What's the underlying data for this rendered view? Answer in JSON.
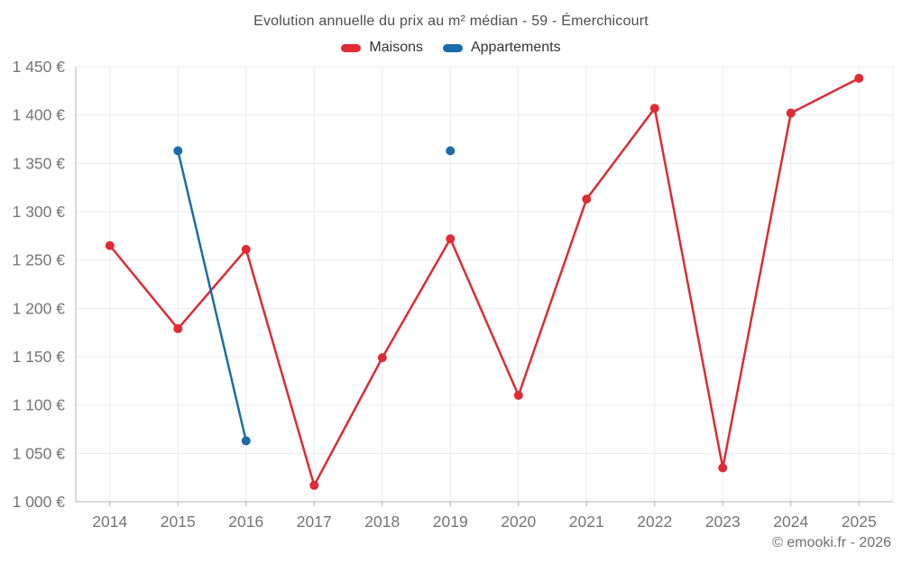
{
  "title": "Evolution annuelle du prix au m² médian - 59 - Émerchicourt",
  "footer": {
    "text": "© emooki.fr - 2026"
  },
  "colors": {
    "grid": "#ebebeb",
    "axis": "#b3b3b3",
    "tick_text": "#757575",
    "maisons": "#e02a34",
    "appartements": "#1b6ca8"
  },
  "chart_data": {
    "type": "line",
    "title": "Evolution annuelle du prix au m² médian - 59 - Émerchicourt",
    "categories": [
      "2014",
      "2015",
      "2016",
      "2017",
      "2018",
      "2019",
      "2020",
      "2021",
      "2022",
      "2023",
      "2024",
      "2025"
    ],
    "series": [
      {
        "name": "Maisons",
        "color": "#e02a34",
        "values": [
          1265,
          1179,
          1261,
          1017,
          1149,
          1272,
          1110,
          1313,
          1407,
          1035,
          1402,
          1438
        ]
      },
      {
        "name": "Appartements",
        "color": "#1b6ca8",
        "values": [
          null,
          1363,
          1063,
          null,
          null,
          1363,
          null,
          null,
          null,
          null,
          null,
          null
        ]
      }
    ],
    "ylim": [
      1000,
      1450
    ],
    "ytick_step": 50,
    "ytick_labels": [
      "1 000 €",
      "1 050 €",
      "1 100 €",
      "1 150 €",
      "1 200 €",
      "1 250 €",
      "1 300 €",
      "1 350 €",
      "1 400 €",
      "1 450 €"
    ],
    "xlabel": "",
    "ylabel": "",
    "grid": true,
    "legend_position": "top"
  }
}
